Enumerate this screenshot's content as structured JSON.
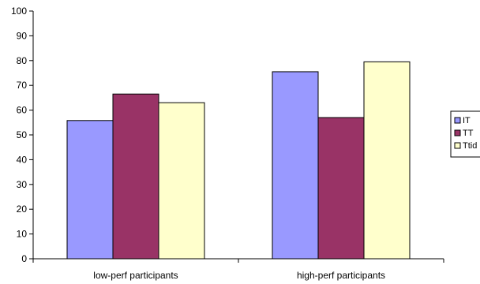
{
  "chart_data": {
    "type": "bar",
    "categories": [
      "low-perf participants",
      "high-perf participants"
    ],
    "series": [
      {
        "name": "IT",
        "values": [
          55.8,
          75.5
        ],
        "color": "#9999ff"
      },
      {
        "name": "TT",
        "values": [
          66.5,
          57.0
        ],
        "color": "#993366"
      },
      {
        "name": "Ttid",
        "values": [
          63.0,
          79.5
        ],
        "color": "#ffffcc"
      }
    ],
    "title": "",
    "xlabel": "",
    "ylabel": "",
    "ylim": [
      0,
      100
    ],
    "yticks": [
      0,
      10,
      20,
      30,
      40,
      50,
      60,
      70,
      80,
      90,
      100
    ],
    "grid": false,
    "legend": "right"
  }
}
